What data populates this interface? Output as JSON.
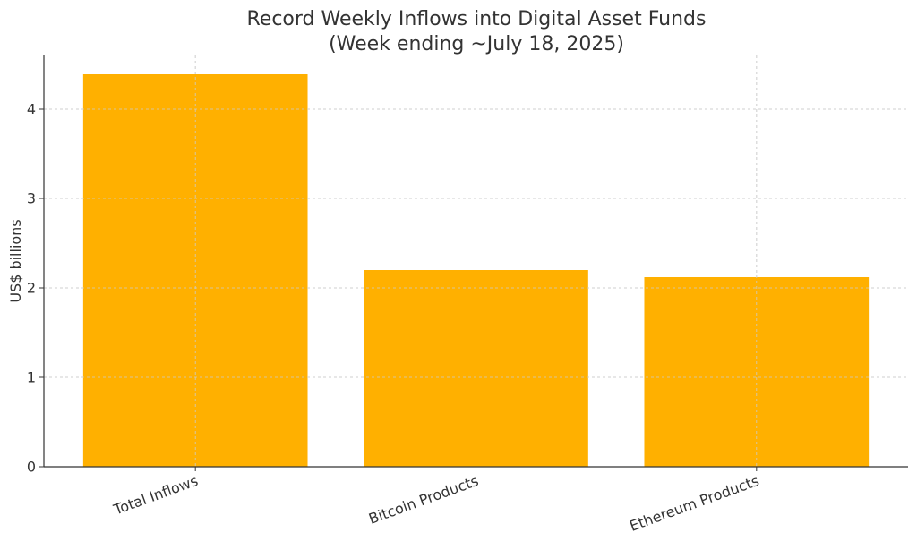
{
  "chart_data": {
    "type": "bar",
    "title_line1": "Record Weekly Inflows into Digital Asset Funds",
    "title_line2": "(Week ending ~July 18, 2025)",
    "xlabel": "",
    "ylabel": "US$ billions",
    "categories": [
      "Total Inflows",
      "Bitcoin Products",
      "Ethereum Products"
    ],
    "values": [
      4.39,
      2.2,
      2.12
    ],
    "ylim": [
      0,
      4.6
    ],
    "yticks": [
      0,
      1,
      2,
      3,
      4
    ],
    "grid": true,
    "bar_color": "#FFB000",
    "grid_color": "#cccccc",
    "axis_color": "#333333"
  }
}
